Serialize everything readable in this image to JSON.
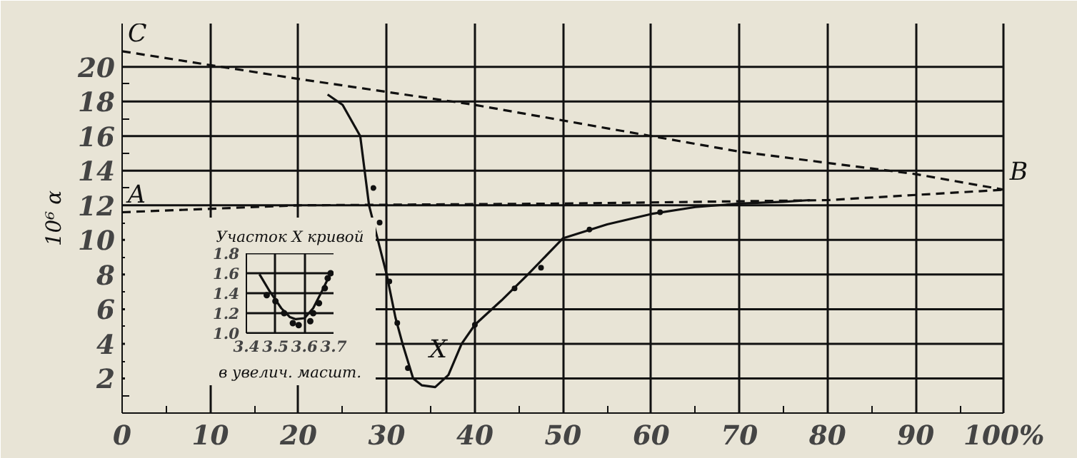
{
  "chart_data": [
    {
      "type": "line",
      "ylabel": "10⁶ α",
      "xlim": [
        0,
        100
      ],
      "ylim": [
        0,
        22.5
      ],
      "xticks": [
        0,
        {
          "value": 5,
          "label": null
        },
        10,
        {
          "value": 15,
          "label": null
        },
        20,
        {
          "value": 25,
          "label": null
        },
        30,
        {
          "value": 35,
          "label": null
        },
        40,
        {
          "value": 45,
          "label": null
        },
        50,
        {
          "value": 55,
          "label": null
        },
        60,
        {
          "value": 65,
          "label": null
        },
        70,
        {
          "value": 75,
          "label": null
        },
        80,
        {
          "value": 85,
          "label": null
        },
        90,
        {
          "value": 95,
          "label": null
        },
        {
          "value": 100,
          "label": "100%"
        }
      ],
      "yticks": [
        {
          "value": 1,
          "label": null
        },
        2,
        {
          "value": 3,
          "label": null
        },
        4,
        {
          "value": 5,
          "label": null
        },
        6,
        {
          "value": 7,
          "label": null
        },
        8,
        {
          "value": 9,
          "label": null
        },
        10,
        {
          "value": 11,
          "label": null
        },
        12,
        {
          "value": 13,
          "label": null
        },
        14,
        {
          "value": 15,
          "label": null
        },
        16,
        {
          "value": 17,
          "label": null
        },
        18,
        {
          "value": 19,
          "label": null
        },
        20
      ],
      "grid": true,
      "series": [
        {
          "color": "#111111",
          "line_style": "solid",
          "x": [
            23.3,
            25,
            27,
            28,
            29,
            30,
            31,
            31.8,
            33,
            34,
            35.5,
            37,
            38.5,
            40,
            43,
            46,
            50,
            55,
            60,
            65,
            70,
            75,
            78
          ],
          "values": [
            18.4,
            17.8,
            16,
            12,
            10,
            8,
            5.5,
            4,
            2,
            1.6,
            1.5,
            2.2,
            4,
            5.1,
            6.5,
            8,
            10.1,
            10.9,
            11.5,
            11.9,
            12.1,
            12.2,
            12.3
          ]
        },
        {
          "color": "#111111",
          "line_style": "dashed",
          "x": [
            0,
            10,
            20,
            40,
            60,
            70,
            90,
            100
          ],
          "values": [
            20.9,
            20.1,
            19.3,
            17.8,
            16,
            15.1,
            13.8,
            12.9
          ]
        },
        {
          "color": "#111111",
          "line_style": "dashed",
          "x": [
            0,
            20,
            50,
            80,
            100
          ],
          "values": [
            11.6,
            12,
            12.1,
            12.3,
            12.9
          ]
        },
        {
          "type": "scatter",
          "marker": "circle",
          "color": "#111111",
          "x": [
            28.5,
            29.2,
            30.3,
            31.2,
            32.4,
            40,
            44.5,
            47.5,
            53,
            61
          ],
          "values": [
            13,
            11,
            7.6,
            5.2,
            2.6,
            5.1,
            7.2,
            8.4,
            10.6,
            11.6
          ]
        }
      ],
      "annotations": [
        {
          "text": "C",
          "x": 0,
          "y": 20.9
        },
        {
          "text": "A",
          "x": 0,
          "y": 11.6
        },
        {
          "text": "B",
          "x": 100,
          "y": 12.9
        },
        {
          "text": "X",
          "x": 35.5,
          "y": 1.5
        }
      ]
    },
    {
      "type": "line",
      "title": "Участок X кривой",
      "xlabel": "в увелич. масшт.",
      "xlim": [
        3.4,
        3.7
      ],
      "ylim": [
        1.0,
        1.8
      ],
      "xticks": [
        3.4,
        3.5,
        3.6,
        3.7
      ],
      "yticks": [
        {
          "value": 1.0,
          "label": "1.0"
        },
        1.2,
        1.4,
        1.6,
        1.8
      ],
      "grid": true,
      "series": [
        {
          "color": "#111111",
          "line_style": "solid",
          "x": [
            3.445,
            3.48,
            3.52,
            3.55,
            3.57,
            3.6,
            3.63,
            3.66,
            3.69
          ],
          "values": [
            1.59,
            1.42,
            1.25,
            1.16,
            1.14,
            1.15,
            1.25,
            1.42,
            1.6
          ]
        },
        {
          "type": "scatter",
          "marker": "circle",
          "color": "#111111",
          "x": [
            3.47,
            3.5,
            3.53,
            3.56,
            3.58,
            3.62,
            3.63,
            3.65,
            3.67,
            3.68,
            3.69
          ],
          "values": [
            1.38,
            1.32,
            1.2,
            1.1,
            1.08,
            1.12,
            1.2,
            1.3,
            1.45,
            1.55,
            1.6
          ]
        }
      ]
    }
  ]
}
